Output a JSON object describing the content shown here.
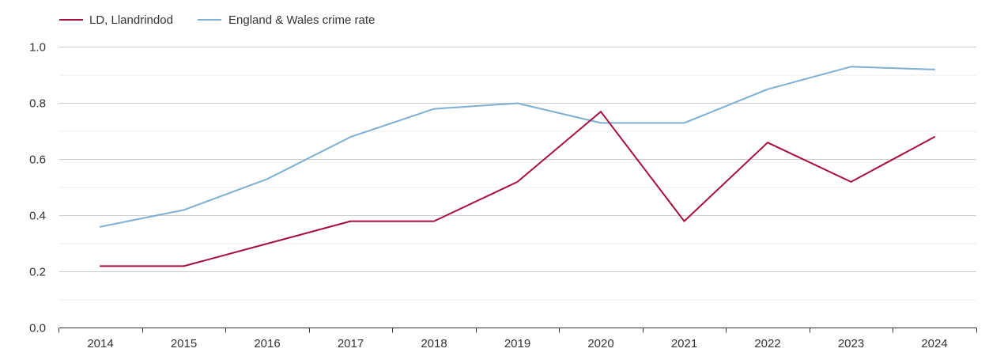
{
  "chart_data": {
    "type": "line",
    "title": "",
    "xlabel": "",
    "ylabel": "",
    "x": [
      "2014",
      "2015",
      "2016",
      "2017",
      "2018",
      "2019",
      "2020",
      "2021",
      "2022",
      "2023",
      "2024"
    ],
    "ylim": [
      0,
      1.0
    ],
    "yticks": [
      "0.0",
      "0.2",
      "0.4",
      "0.6",
      "0.8",
      "1.0"
    ],
    "grid": true,
    "legend_position": "top-left",
    "series": [
      {
        "name": "LD, Llandrindod",
        "color": "#a50f3a",
        "values": [
          0.22,
          0.22,
          0.3,
          0.38,
          0.38,
          0.52,
          0.77,
          0.38,
          0.66,
          0.52,
          0.68
        ]
      },
      {
        "name": "England & Wales crime rate",
        "color": "#7bafd4",
        "values": [
          0.36,
          0.42,
          0.53,
          0.68,
          0.78,
          0.8,
          0.73,
          0.73,
          0.85,
          0.93,
          0.92
        ]
      }
    ]
  }
}
